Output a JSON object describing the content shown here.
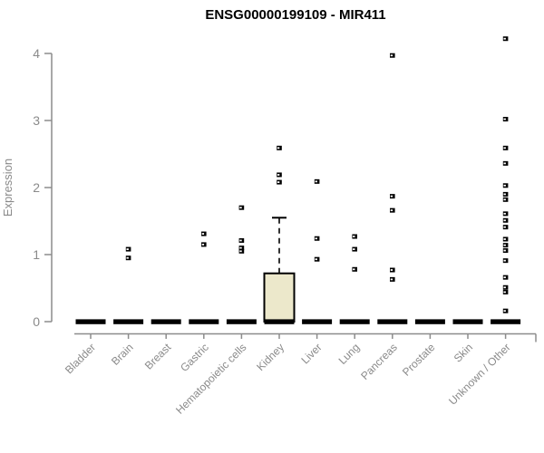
{
  "title": "ENSG00000199109 - MIR411",
  "chart_data": {
    "type": "boxplot",
    "title": "ENSG00000199109 - MIR411",
    "xlabel": "",
    "ylabel": "Expression",
    "ylim": [
      0,
      4.3
    ],
    "yticks": [
      0,
      1,
      2,
      3,
      4
    ],
    "grid": false,
    "legend": false,
    "categories": [
      "Bladder",
      "Brain",
      "Breast",
      "Gastric",
      "Hematopoietic cells",
      "Kidney",
      "Liver",
      "Lung",
      "Pancreas",
      "Prostate",
      "Skin",
      "Unknown / Other"
    ],
    "boxes": [
      {
        "category": "Bladder",
        "q1": 0,
        "median": 0,
        "q3": 0,
        "whisker_low": 0,
        "whisker_high": 0,
        "outliers": []
      },
      {
        "category": "Brain",
        "q1": 0,
        "median": 0,
        "q3": 0,
        "whisker_low": 0,
        "whisker_high": 0,
        "outliers": [
          1.08,
          0.95
        ]
      },
      {
        "category": "Breast",
        "q1": 0,
        "median": 0,
        "q3": 0,
        "whisker_low": 0,
        "whisker_high": 0,
        "outliers": []
      },
      {
        "category": "Gastric",
        "q1": 0,
        "median": 0,
        "q3": 0,
        "whisker_low": 0,
        "whisker_high": 0,
        "outliers": [
          1.31,
          1.15
        ]
      },
      {
        "category": "Hematopoietic cells",
        "q1": 0,
        "median": 0,
        "q3": 0,
        "whisker_low": 0,
        "whisker_high": 0,
        "outliers": [
          1.7,
          1.21,
          1.1,
          1.05
        ]
      },
      {
        "category": "Kidney",
        "q1": 0,
        "median": 0,
        "q3": 0.72,
        "whisker_low": 0,
        "whisker_high": 1.55,
        "outliers": [
          2.59,
          2.19,
          2.08
        ]
      },
      {
        "category": "Liver",
        "q1": 0,
        "median": 0,
        "q3": 0,
        "whisker_low": 0,
        "whisker_high": 0,
        "outliers": [
          2.09,
          1.24,
          0.93
        ]
      },
      {
        "category": "Lung",
        "q1": 0,
        "median": 0,
        "q3": 0,
        "whisker_low": 0,
        "whisker_high": 0,
        "outliers": [
          1.27,
          1.08,
          0.78
        ]
      },
      {
        "category": "Pancreas",
        "q1": 0,
        "median": 0,
        "q3": 0,
        "whisker_low": 0,
        "whisker_high": 0,
        "outliers": [
          3.97,
          1.87,
          1.66,
          0.77,
          0.63
        ]
      },
      {
        "category": "Prostate",
        "q1": 0,
        "median": 0,
        "q3": 0,
        "whisker_low": 0,
        "whisker_high": 0,
        "outliers": []
      },
      {
        "category": "Skin",
        "q1": 0,
        "median": 0,
        "q3": 0,
        "whisker_low": 0,
        "whisker_high": 0,
        "outliers": []
      },
      {
        "category": "Unknown / Other",
        "q1": 0,
        "median": 0,
        "q3": 0,
        "whisker_low": 0,
        "whisker_high": 0,
        "outliers": [
          4.22,
          3.02,
          2.59,
          2.36,
          2.03,
          1.9,
          1.82,
          1.61,
          1.51,
          1.41,
          1.23,
          1.14,
          1.06,
          0.91,
          0.66,
          0.51,
          0.44,
          0.16
        ]
      }
    ],
    "colors": {
      "box_fill": "#ECE8CB",
      "box_stroke": "#000000",
      "median": "#000000",
      "outlier": "#000000",
      "axis": "#8C8C8C",
      "tick_label": "#8A8A8A",
      "title": "#000000"
    }
  }
}
